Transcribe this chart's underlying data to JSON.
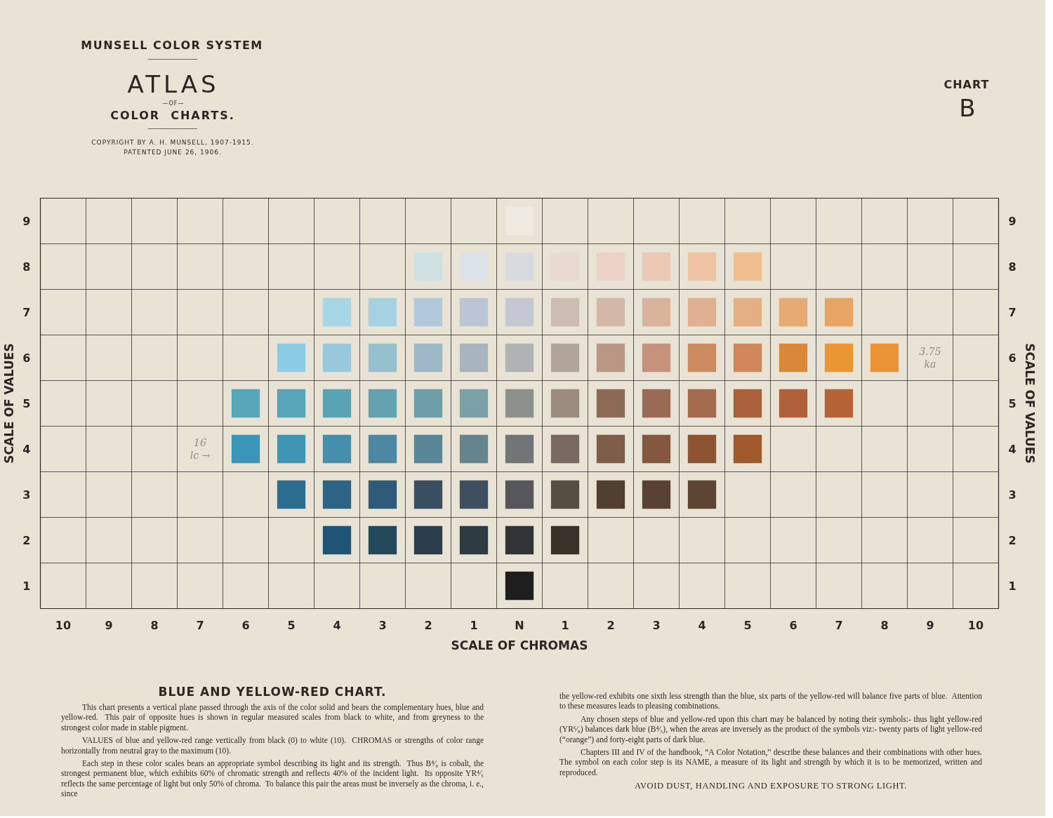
{
  "chart_data": {
    "type": "scatter",
    "title": "BLUE AND YELLOW-RED CHART.",
    "xlabel": "SCALE OF CHROMAS",
    "ylabel": "SCALE OF VALUES",
    "y2label": "SCALE OF VALUES",
    "x": [
      0,
      -2,
      -1,
      0,
      1,
      2,
      3,
      4,
      5,
      -4,
      -3,
      -2,
      -1,
      0,
      1,
      2,
      3,
      4,
      5,
      6,
      7,
      -5,
      -4,
      -3,
      -2,
      -1,
      0,
      1,
      2,
      3,
      4,
      5,
      6,
      7,
      8,
      -6,
      -5,
      -4,
      -3,
      -2,
      -1,
      0,
      1,
      2,
      3,
      4,
      5,
      6,
      7,
      -6,
      -5,
      -4,
      -3,
      -2,
      -1,
      0,
      1,
      2,
      3,
      4,
      5,
      -5,
      -4,
      -3,
      -2,
      -1,
      0,
      1,
      2,
      3,
      4,
      -4,
      -3,
      -2,
      -1,
      0,
      1,
      0
    ],
    "values": [
      9,
      8,
      8,
      8,
      8,
      8,
      8,
      8,
      8,
      7,
      7,
      7,
      7,
      7,
      7,
      7,
      7,
      7,
      7,
      7,
      7,
      6,
      6,
      6,
      6,
      6,
      6,
      6,
      6,
      6,
      6,
      6,
      6,
      6,
      6,
      5,
      5,
      5,
      5,
      5,
      5,
      5,
      5,
      5,
      5,
      5,
      5,
      5,
      5,
      4,
      4,
      4,
      4,
      4,
      4,
      4,
      4,
      4,
      4,
      4,
      4,
      3,
      3,
      3,
      3,
      3,
      3,
      3,
      3,
      3,
      3,
      2,
      2,
      2,
      2,
      2,
      2,
      1
    ],
    "colors": [
      "#efebe2",
      "#cfe0e2",
      "#dbe2ea",
      "#d8dae0",
      "#e9d9d3",
      "#ead2c7",
      "#ecc9b5",
      "#eec4a5",
      "#f0bf8f",
      "#a7d7e6",
      "#a6d1e1",
      "#b0c9da",
      "#bcc5d5",
      "#c4c8d4",
      "#ccbcb1",
      "#d3b7a7",
      "#dab39d",
      "#dfb192",
      "#e4af83",
      "#e7aa72",
      "#e8a463",
      "#8ccbe6",
      "#98c8dc",
      "#97c0cf",
      "#9fb8c7",
      "#a8b5bf",
      "#b0b2b4",
      "#b1a599",
      "#b89884",
      "#c6927b",
      "#cd8c60",
      "#d0875a",
      "#d98739",
      "#ea9633",
      "#e99236",
      "#57a7b9",
      "#58a5b9",
      "#59a3b4",
      "#64a2b0",
      "#6e9fa9",
      "#7ca0a7",
      "#8d908b",
      "#9b8c7f",
      "#8c6a56",
      "#996b55",
      "#a26b4d",
      "#aa603b",
      "#b0613a",
      "#b56336",
      "#3a96b8",
      "#3e95b4",
      "#458fac",
      "#4e87a2",
      "#598696",
      "#66848d",
      "#727576",
      "#786a62",
      "#7f5d4b",
      "#86573f",
      "#8d5431",
      "#a0592a",
      "#2d6d91",
      "#2d6385",
      "#2e5b79",
      "#3a4e62",
      "#404f5f",
      "#55575b",
      "#564e43",
      "#51402f",
      "#594235",
      "#5e4433",
      "#1e5476",
      "#23485c",
      "#2a3e4b",
      "#2d3c42",
      "#323335",
      "#3b312b",
      "#1e1e1f"
    ],
    "marker": "square",
    "grid": true,
    "xlim": [
      -10.5,
      10.5
    ],
    "xticks": [
      {
        "value": -10,
        "label": "10"
      },
      {
        "value": -9,
        "label": "9"
      },
      {
        "value": -8,
        "label": "8"
      },
      {
        "value": -7,
        "label": "7"
      },
      {
        "value": -6,
        "label": "6"
      },
      {
        "value": -5,
        "label": "5"
      },
      {
        "value": -4,
        "label": "4"
      },
      {
        "value": -3,
        "label": "3"
      },
      {
        "value": -2,
        "label": "2"
      },
      {
        "value": -1,
        "label": "1"
      },
      {
        "value": 0,
        "label": "N"
      },
      1,
      2,
      3,
      4,
      5,
      6,
      7,
      8,
      9,
      10
    ],
    "ylim": [
      0.5,
      9.5
    ],
    "yticks": [
      1,
      2,
      3,
      4,
      5,
      6,
      7,
      8,
      9
    ],
    "y2lim": [
      0.5,
      9.5
    ],
    "y2ticks": [
      1,
      2,
      3,
      4,
      5,
      6,
      7,
      8,
      9
    ],
    "annotations": [
      "MUNSELL COLOR SYSTEM",
      "ATLAS",
      "—OF—",
      "COLOR  CHARTS.",
      "COPYRIGHT BY A. H. MUNSELL, 1907-1915.",
      "PATENTED JUNE 26, 1906.",
      "CHART",
      "B",
      "This chart presents a vertical plane passed through the axis of the color solid and bears the complementary hues, blue and yellow-red.  This pair of opposite hues is shown in regular measured scales from black to white, and from greyness to the strongest color made in stable pigment.",
      "VALUES of blue and yellow-red range vertically from black (0) to white (10).  CHROMAS or strengths of color range horizontally from neutral gray to the maximum (10).",
      "Each step in these color scales bears an appropriate symbol describing its light and its strength.  Thus B⁴⁄₆ is cobalt, the strongest permanent blue, which exhibits 60% of chromatic strength and reflects 40% of the incident light.  Its opposite YR⁴⁄₅ reflects the same percentage of light but only 50% of chroma.  To balance this pair the areas must be inversely as the chroma, i. e., since",
      "the yellow-red exhibits one sixth less strength than the blue, six parts of the yellow-red will balance five parts of blue.  Attention to these measures leads to pleasing combinations.",
      "Any chosen steps of blue and yellow-red upon this chart may be balanced by noting their symbols:- thus light yellow-red (YR⁶⁄₈) balances dark blue (B⁴⁄₅), when the areas are inversely as the product of the symbols viz:- twenty parts of light yellow-red (“orange”) and forty-eight parts of dark blue.",
      "Chapters III and IV of the handbook, “A Color Notation,” describe these balances and their combinations with other hues.  The symbol on each color step is its NAME, a measure of its light and strength by which it is to be memorized, written and reproduced.",
      "AVOID DUST, HANDLING AND EXPOSURE TO STRONG LIGHT.",
      "16\nlc →",
      "3.75\nka"
    ]
  }
}
